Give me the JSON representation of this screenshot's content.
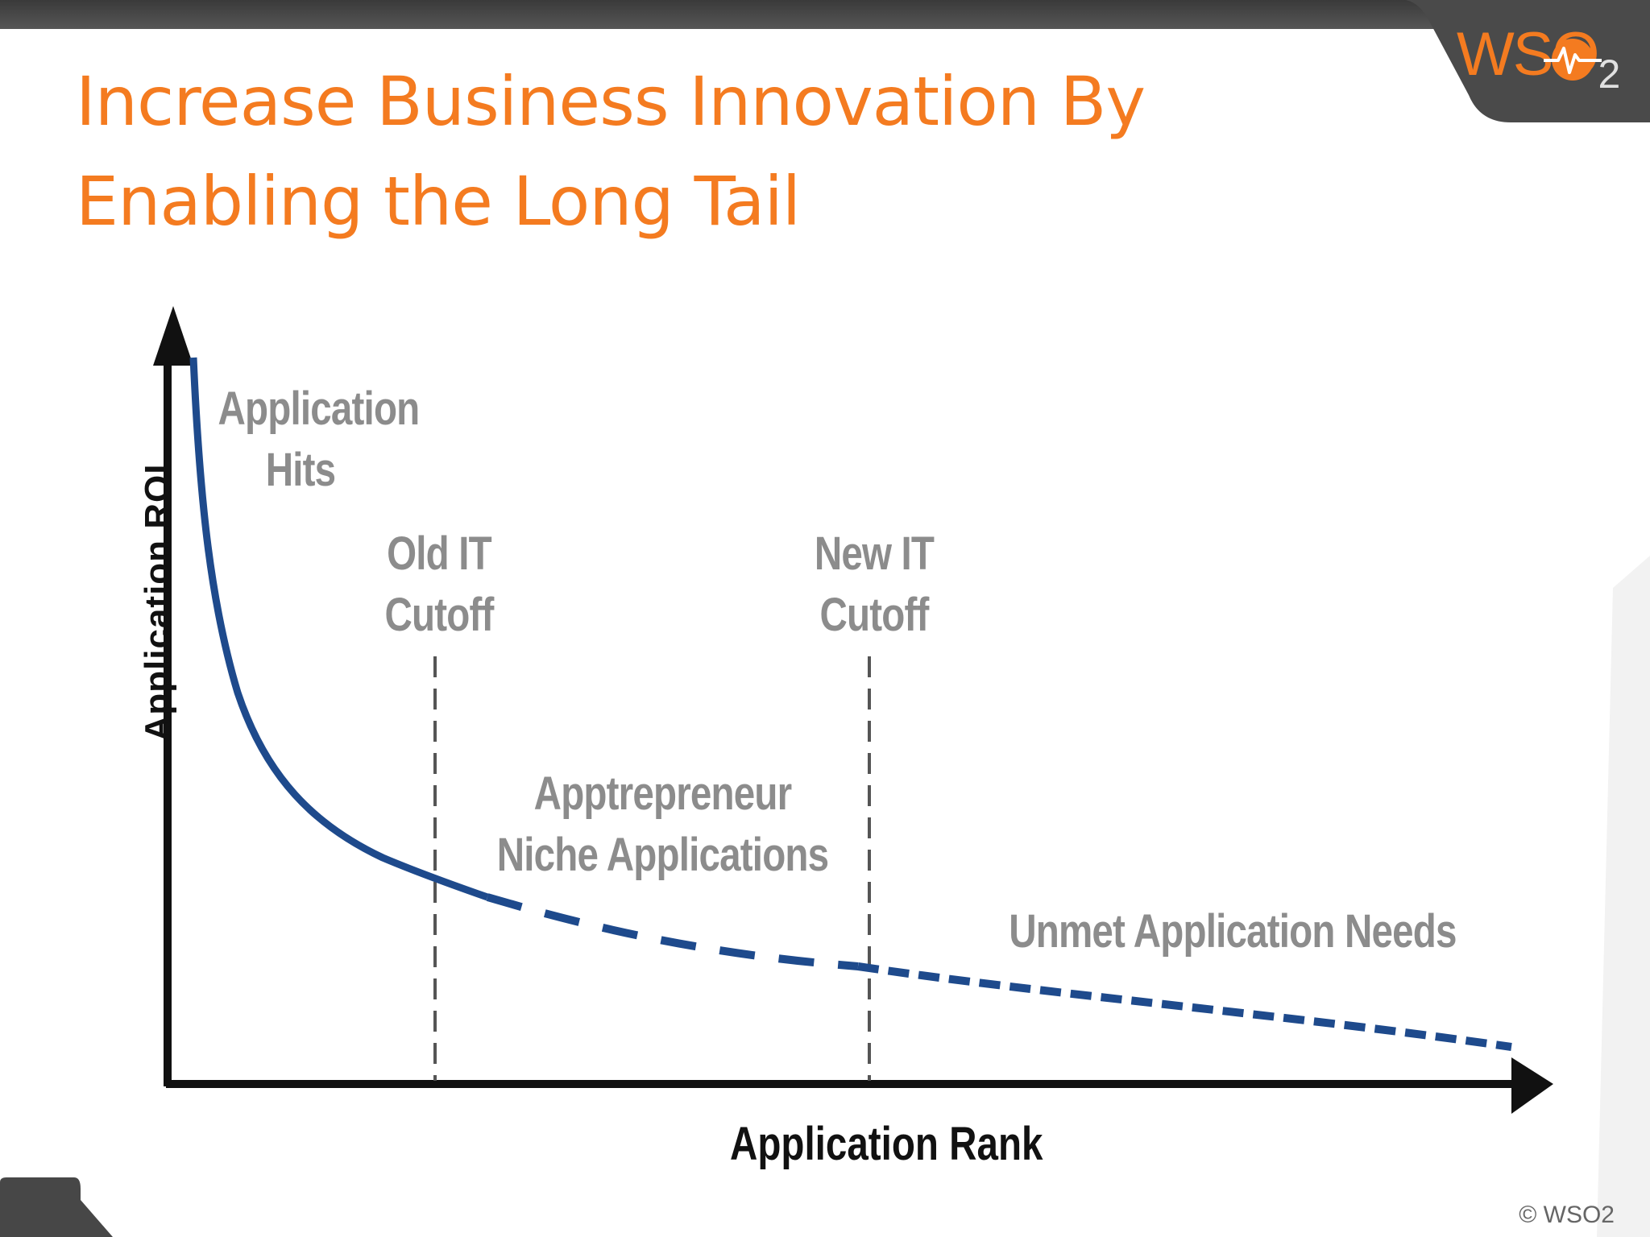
{
  "slide": {
    "title_line1": "Increase Business Innovation By",
    "title_line2": "Enabling the Long Tail",
    "logo": {
      "text": "WSO",
      "subscript": "2",
      "brand_color": "#f47b20"
    },
    "copyright": "© WSO2"
  },
  "diagram": {
    "x_axis_label": "Application Rank",
    "y_axis_label": "Application ROI",
    "regions": {
      "hits_line1": "Application",
      "hits_line2": "Hits",
      "niche_line1": "Apptrepreneur",
      "niche_line2": "Niche Applications",
      "unmet": "Unmet Application Needs"
    },
    "cutoffs": {
      "old_line1": "Old IT",
      "old_line2": "Cutoff",
      "new_line1": "New IT",
      "new_line2": "Cutoff"
    },
    "colors": {
      "curve": "#1e4a8c",
      "label": "#8c8c8c",
      "axis": "#111111",
      "cutoff_line": "#555555"
    }
  }
}
